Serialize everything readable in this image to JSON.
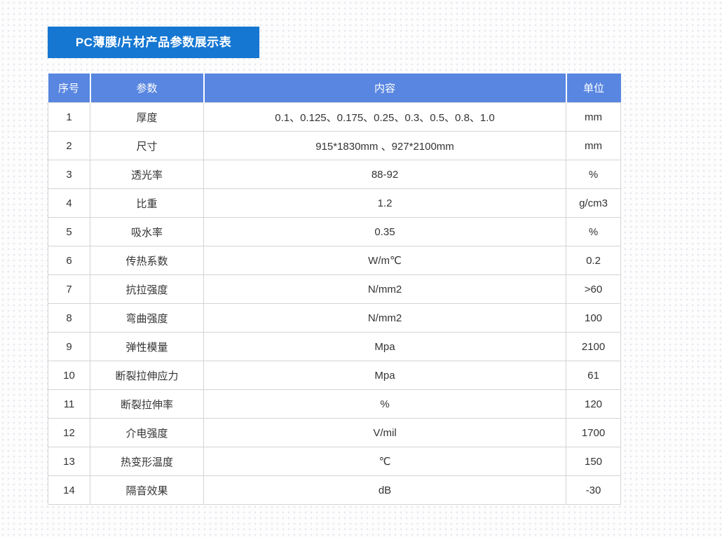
{
  "title": "PC薄膜/片材产品参数展示表",
  "colors": {
    "title_bar_bg": "#1577d2",
    "header_bg": "#5886e0",
    "header_text": "#ffffff",
    "body_text": "#333333",
    "border": "#d4d4d4",
    "background_dots": "#e7e8ee"
  },
  "table": {
    "columns": [
      "序号",
      "参数",
      "内容",
      "单位"
    ],
    "rows": [
      {
        "no": "1",
        "param": "厚度",
        "content": "0.1、0.125、0.175、0.25、0.3、0.5、0.8、1.0",
        "unit": "mm"
      },
      {
        "no": "2",
        "param": "尺寸",
        "content": "915*1830mm 、927*2100mm",
        "unit": "mm"
      },
      {
        "no": "3",
        "param": "透光率",
        "content": "88-92",
        "unit": "%"
      },
      {
        "no": "4",
        "param": "比重",
        "content": "1.2",
        "unit": "g/cm3"
      },
      {
        "no": "5",
        "param": "吸水率",
        "content": "0.35",
        "unit": "%"
      },
      {
        "no": "6",
        "param": "传热系数",
        "content": "W/m℃",
        "unit": "0.2"
      },
      {
        "no": "7",
        "param": "抗拉强度",
        "content": "N/mm2",
        "unit": ">60"
      },
      {
        "no": "8",
        "param": "弯曲强度",
        "content": "N/mm2",
        "unit": "100"
      },
      {
        "no": "9",
        "param": "弹性模量",
        "content": "Mpa",
        "unit": "2100"
      },
      {
        "no": "10",
        "param": "断裂拉伸应力",
        "content": "Mpa",
        "unit": "61"
      },
      {
        "no": "11",
        "param": "断裂拉伸率",
        "content": "%",
        "unit": "120"
      },
      {
        "no": "12",
        "param": "介电强度",
        "content": "V/mil",
        "unit": "1700"
      },
      {
        "no": "13",
        "param": "热变形温度",
        "content": "℃",
        "unit": "150"
      },
      {
        "no": "14",
        "param": "隔音效果",
        "content": "dB",
        "unit": "-30"
      }
    ]
  }
}
